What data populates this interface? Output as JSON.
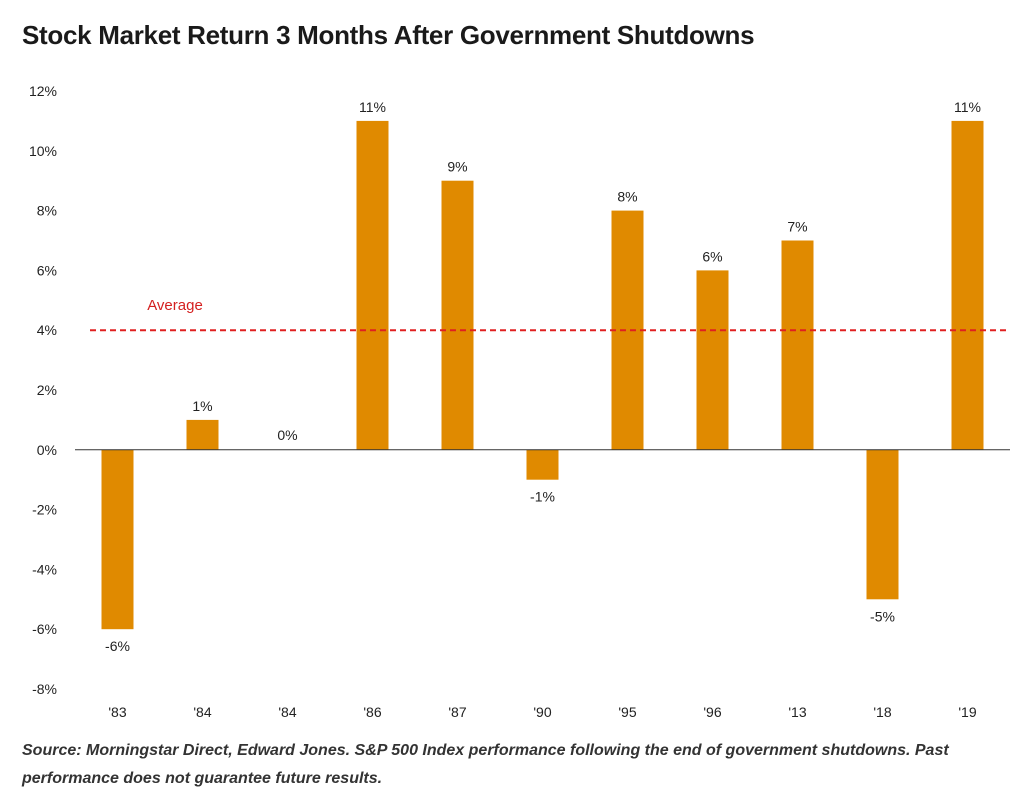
{
  "title": "Stock Market Return 3 Months After Government Shutdowns",
  "source_note": "Source: Morningstar Direct, Edward Jones. S&P 500 Index performance following the end of government shutdowns. Past performance does not guarantee future results.",
  "colors": {
    "bar": "#e08a00",
    "average": "#e02020",
    "axis": "#333333"
  },
  "chart_data": {
    "type": "bar",
    "title": "Stock Market Return 3 Months After Government Shutdowns",
    "xlabel": "",
    "ylabel": "",
    "categories": [
      "'83",
      "'84",
      "'84",
      "'86",
      "'87",
      "'90",
      "'95",
      "'96",
      "'13",
      "'18",
      "'19"
    ],
    "values": [
      -6,
      1,
      0,
      11,
      9,
      -1,
      8,
      6,
      7,
      -5,
      11
    ],
    "data_labels": [
      "-6%",
      "1%",
      "0%",
      "11%",
      "9%",
      "-1%",
      "8%",
      "6%",
      "7%",
      "-5%",
      "11%"
    ],
    "ylim": [
      -8,
      12
    ],
    "yticks": [
      12,
      10,
      8,
      6,
      4,
      2,
      0,
      -2,
      -4,
      -6,
      -8
    ],
    "ytick_labels": [
      "12%",
      "10%",
      "8%",
      "6%",
      "4%",
      "2%",
      "0%",
      "-2%",
      "-4%",
      "-6%",
      "-8%"
    ],
    "average": {
      "value": 4,
      "label": "Average"
    },
    "grid": false,
    "legend": "none"
  }
}
